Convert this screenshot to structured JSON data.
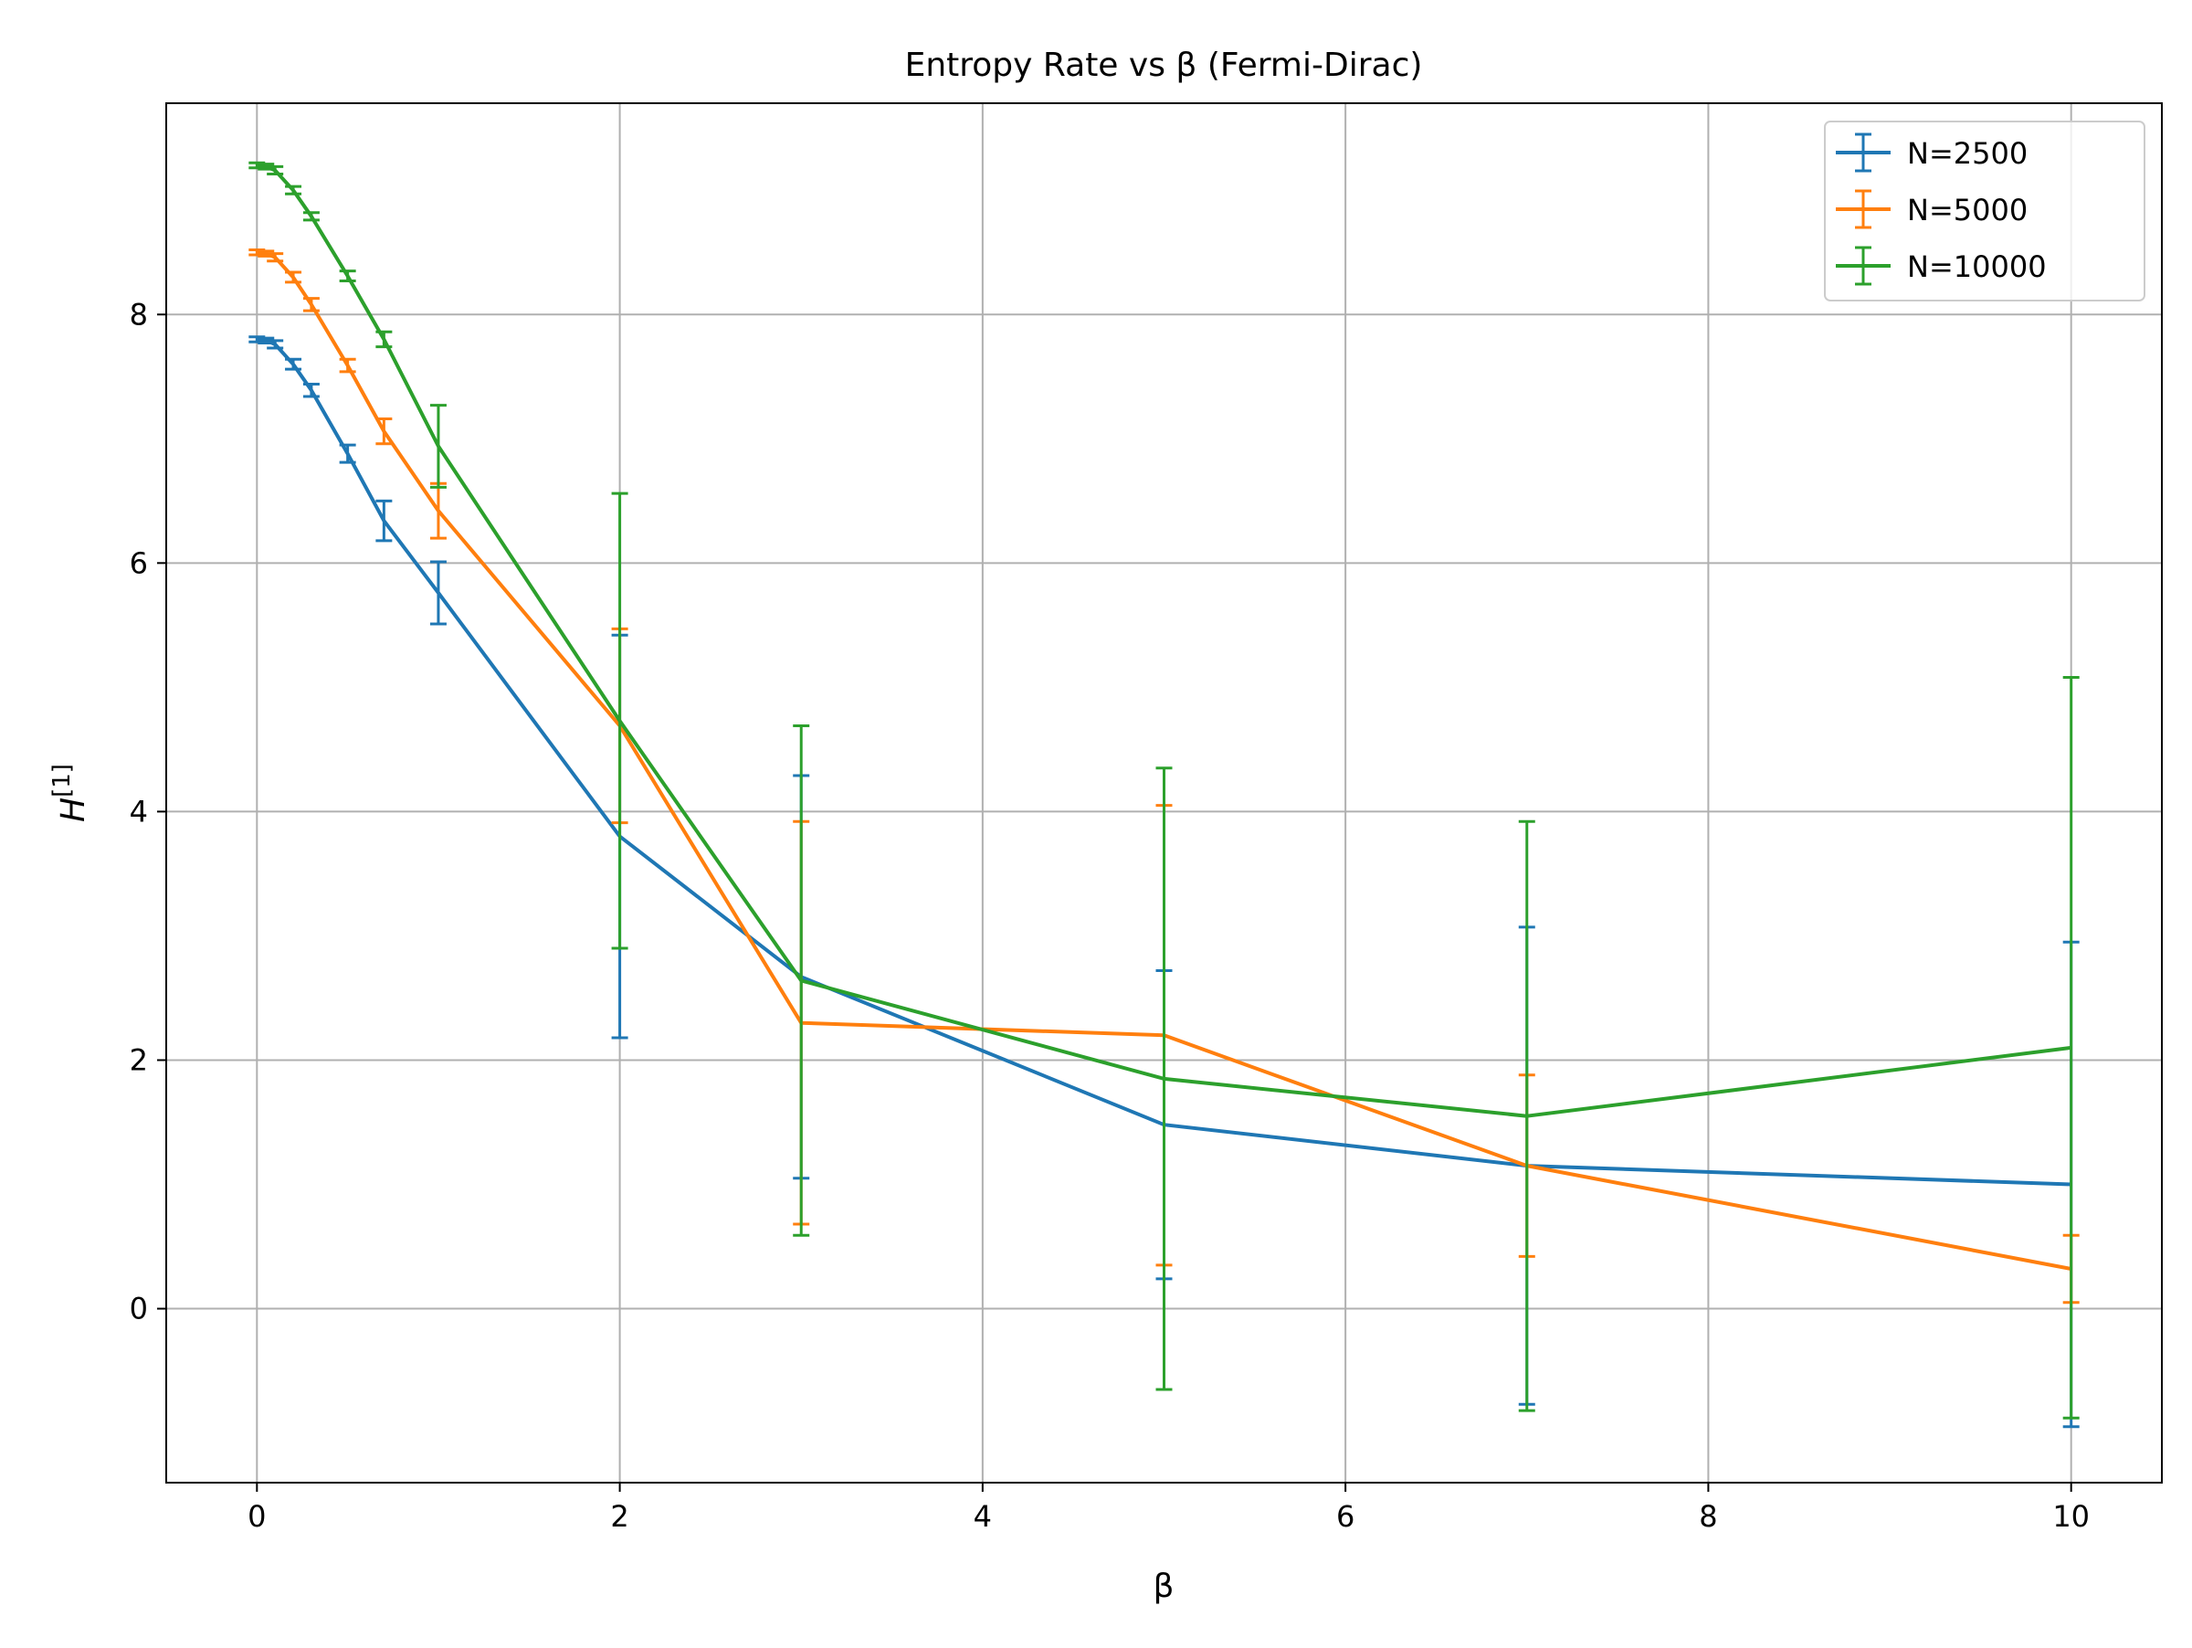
{
  "chart_data": {
    "type": "line",
    "title": "Entropy Rate vs β (Fermi-Dirac)",
    "xlabel": "β",
    "ylabel": {
      "base": "H",
      "superscript": "[1]"
    },
    "xlim": [
      -0.5,
      10.5
    ],
    "ylim": [
      -1.4,
      9.7
    ],
    "x_ticks": [
      0,
      2,
      4,
      6,
      8,
      10
    ],
    "y_ticks": [
      0,
      2,
      4,
      6,
      8
    ],
    "grid": true,
    "legend_position": "top-right",
    "x": [
      0,
      0.05,
      0.1,
      0.2,
      0.3,
      0.5,
      0.7,
      1,
      2,
      3,
      5,
      7,
      10
    ],
    "series": [
      {
        "name": "N=2500",
        "color": "#1f77b4",
        "values": [
          7.8,
          7.79,
          7.76,
          7.6,
          7.39,
          6.88,
          6.34,
          5.76,
          3.8,
          2.67,
          1.48,
          1.15,
          1.0
        ],
        "errors": [
          0.02,
          0.02,
          0.03,
          0.04,
          0.05,
          0.07,
          0.16,
          0.25,
          1.62,
          1.62,
          1.24,
          1.92,
          1.95
        ]
      },
      {
        "name": "N=5000",
        "color": "#ff7f0e",
        "values": [
          8.5,
          8.49,
          8.46,
          8.3,
          8.08,
          7.59,
          7.06,
          6.42,
          4.69,
          2.3,
          2.2,
          1.15,
          0.32
        ],
        "errors": [
          0.02,
          0.02,
          0.03,
          0.04,
          0.05,
          0.05,
          0.1,
          0.22,
          0.78,
          1.62,
          1.85,
          0.73,
          0.27
        ]
      },
      {
        "name": "N=10000",
        "color": "#2ca02c",
        "values": [
          9.2,
          9.19,
          9.16,
          9.0,
          8.79,
          8.31,
          7.8,
          6.94,
          4.73,
          2.64,
          1.85,
          1.55,
          2.1
        ],
        "errors": [
          0.02,
          0.02,
          0.03,
          0.03,
          0.03,
          0.04,
          0.06,
          0.33,
          1.83,
          2.05,
          2.5,
          2.37,
          2.98
        ]
      }
    ]
  }
}
